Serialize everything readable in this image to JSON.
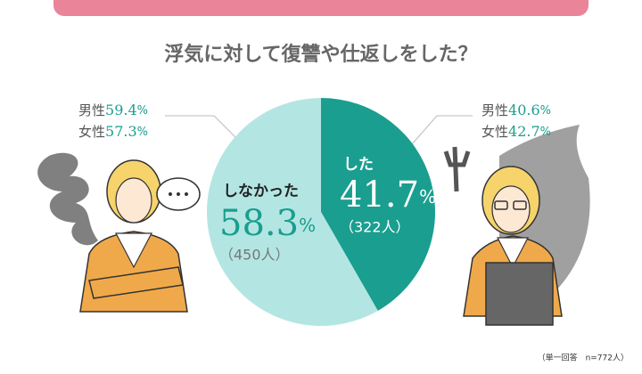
{
  "chart_data": {
    "type": "pie",
    "title": "浮気に対して復讐や仕返しをした？",
    "categories": [
      "した",
      "しなかった"
    ],
    "values": [
      41.7,
      58.3
    ],
    "unit": "%",
    "colors": [
      "#1a9e8f",
      "#b3e6e3"
    ],
    "count_labels": [
      "（322人）",
      "（450人）"
    ],
    "breakdowns": [
      [
        {
          "label": "男性",
          "value": 40.6
        },
        {
          "label": "女性",
          "value": 42.7
        }
      ],
      [
        {
          "label": "男性",
          "value": 59.4
        },
        {
          "label": "女性",
          "value": 57.3
        }
      ]
    ],
    "note": "（単一回答　n=772人）"
  }
}
